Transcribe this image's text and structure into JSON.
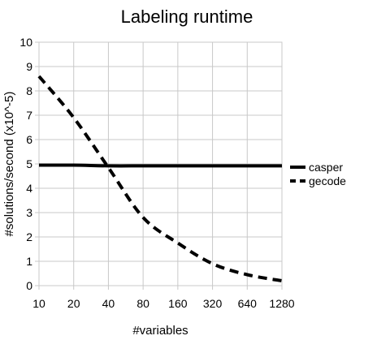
{
  "chart_data": {
    "type": "line",
    "title": "Labeling runtime",
    "xlabel": "#variables",
    "ylabel": "#solutions/second (x10^-5)",
    "categories": [
      "10",
      "20",
      "40",
      "80",
      "160",
      "320",
      "640",
      "1280"
    ],
    "ylim": [
      0,
      10
    ],
    "yticks": [
      "0",
      "1",
      "2",
      "3",
      "4",
      "5",
      "6",
      "7",
      "8",
      "9",
      "10"
    ],
    "grid": true,
    "legend_position": "right",
    "series": [
      {
        "name": "casper",
        "values": [
          4.95,
          4.95,
          4.92,
          4.92,
          4.92,
          4.92,
          4.92,
          4.92
        ],
        "color": "#000000",
        "style": "solid"
      },
      {
        "name": "gecode",
        "values": [
          8.6,
          6.9,
          4.85,
          2.8,
          1.75,
          0.9,
          0.45,
          0.2
        ],
        "color": "#000000",
        "style": "dashed"
      }
    ]
  }
}
